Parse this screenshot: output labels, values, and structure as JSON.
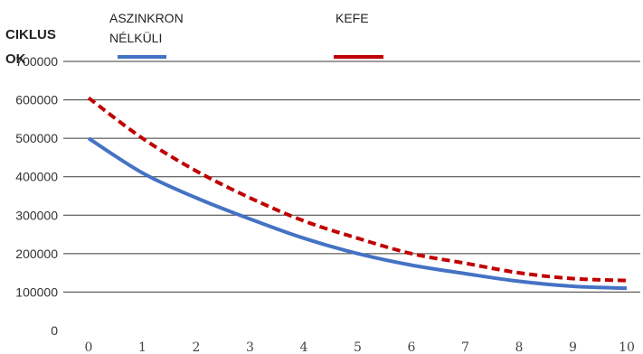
{
  "chart_data": {
    "type": "line",
    "ylabel": [
      "CIKLUS",
      "OK"
    ],
    "x": [
      0,
      1,
      2,
      3,
      4,
      5,
      6,
      7,
      8,
      9,
      10
    ],
    "xlim": [
      0,
      10
    ],
    "ylim": [
      0,
      700000
    ],
    "yticks": [
      0,
      100000,
      200000,
      300000,
      400000,
      500000,
      600000,
      700000
    ],
    "grid": "horizontal",
    "legend": "top",
    "series": [
      {
        "name": [
          "ASZINKRON",
          "NÉLKÜLI"
        ],
        "color": "#4472C4",
        "dash": "solid",
        "values": [
          500000,
          410000,
          345000,
          290000,
          240000,
          200000,
          170000,
          148000,
          128000,
          115000,
          110000
        ]
      },
      {
        "name": [
          "KEFE"
        ],
        "color": "#C00000",
        "dash": "dashed",
        "values": [
          605000,
          500000,
          415000,
          345000,
          285000,
          240000,
          200000,
          175000,
          150000,
          135000,
          130000
        ]
      }
    ]
  }
}
